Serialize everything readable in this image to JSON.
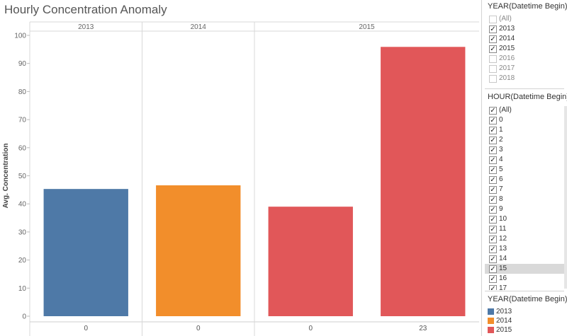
{
  "title": "Hourly Concentration Anomaly",
  "chart_data": {
    "type": "bar",
    "title": "Hourly Concentration Anomaly",
    "ylabel": "Avg. Concentration",
    "xlabel": "",
    "ylim": [
      0,
      100
    ],
    "yticks": [
      0,
      10,
      20,
      30,
      40,
      50,
      60,
      70,
      80,
      90,
      100
    ],
    "grid": false,
    "panes": [
      {
        "header": "2013",
        "bars": [
          {
            "x": "0",
            "value": 45.3,
            "color": "#4e79a7"
          }
        ]
      },
      {
        "header": "2014",
        "bars": [
          {
            "x": "0",
            "value": 46.6,
            "color": "#f28e2b"
          }
        ]
      },
      {
        "header": "2015",
        "bars": [
          {
            "x": "0",
            "value": 39.0,
            "color": "#e15759"
          },
          {
            "x": "23",
            "value": 95.9,
            "color": "#e15759"
          }
        ]
      }
    ]
  },
  "year_filter": {
    "title": "YEAR(Datetime Begin)",
    "items": [
      {
        "label": "(All)",
        "checked": false
      },
      {
        "label": "2013",
        "checked": true
      },
      {
        "label": "2014",
        "checked": true
      },
      {
        "label": "2015",
        "checked": true
      },
      {
        "label": "2016",
        "checked": false
      },
      {
        "label": "2017",
        "checked": false
      },
      {
        "label": "2018",
        "checked": false
      }
    ]
  },
  "hour_filter": {
    "title": "HOUR(Datetime Begin)",
    "highlighted": "15",
    "items": [
      {
        "label": "(All)",
        "checked": true
      },
      {
        "label": "0",
        "checked": true
      },
      {
        "label": "1",
        "checked": true
      },
      {
        "label": "2",
        "checked": true
      },
      {
        "label": "3",
        "checked": true
      },
      {
        "label": "4",
        "checked": true
      },
      {
        "label": "5",
        "checked": true
      },
      {
        "label": "6",
        "checked": true
      },
      {
        "label": "7",
        "checked": true
      },
      {
        "label": "8",
        "checked": true
      },
      {
        "label": "9",
        "checked": true
      },
      {
        "label": "10",
        "checked": true
      },
      {
        "label": "11",
        "checked": true
      },
      {
        "label": "12",
        "checked": true
      },
      {
        "label": "13",
        "checked": true
      },
      {
        "label": "14",
        "checked": true
      },
      {
        "label": "15",
        "checked": true
      },
      {
        "label": "16",
        "checked": true
      },
      {
        "label": "17",
        "checked": true
      }
    ]
  },
  "legend": {
    "title": "YEAR(Datetime Begin)",
    "items": [
      {
        "label": "2013",
        "color": "#4e79a7"
      },
      {
        "label": "2014",
        "color": "#f28e2b"
      },
      {
        "label": "2015",
        "color": "#e15759"
      }
    ]
  }
}
